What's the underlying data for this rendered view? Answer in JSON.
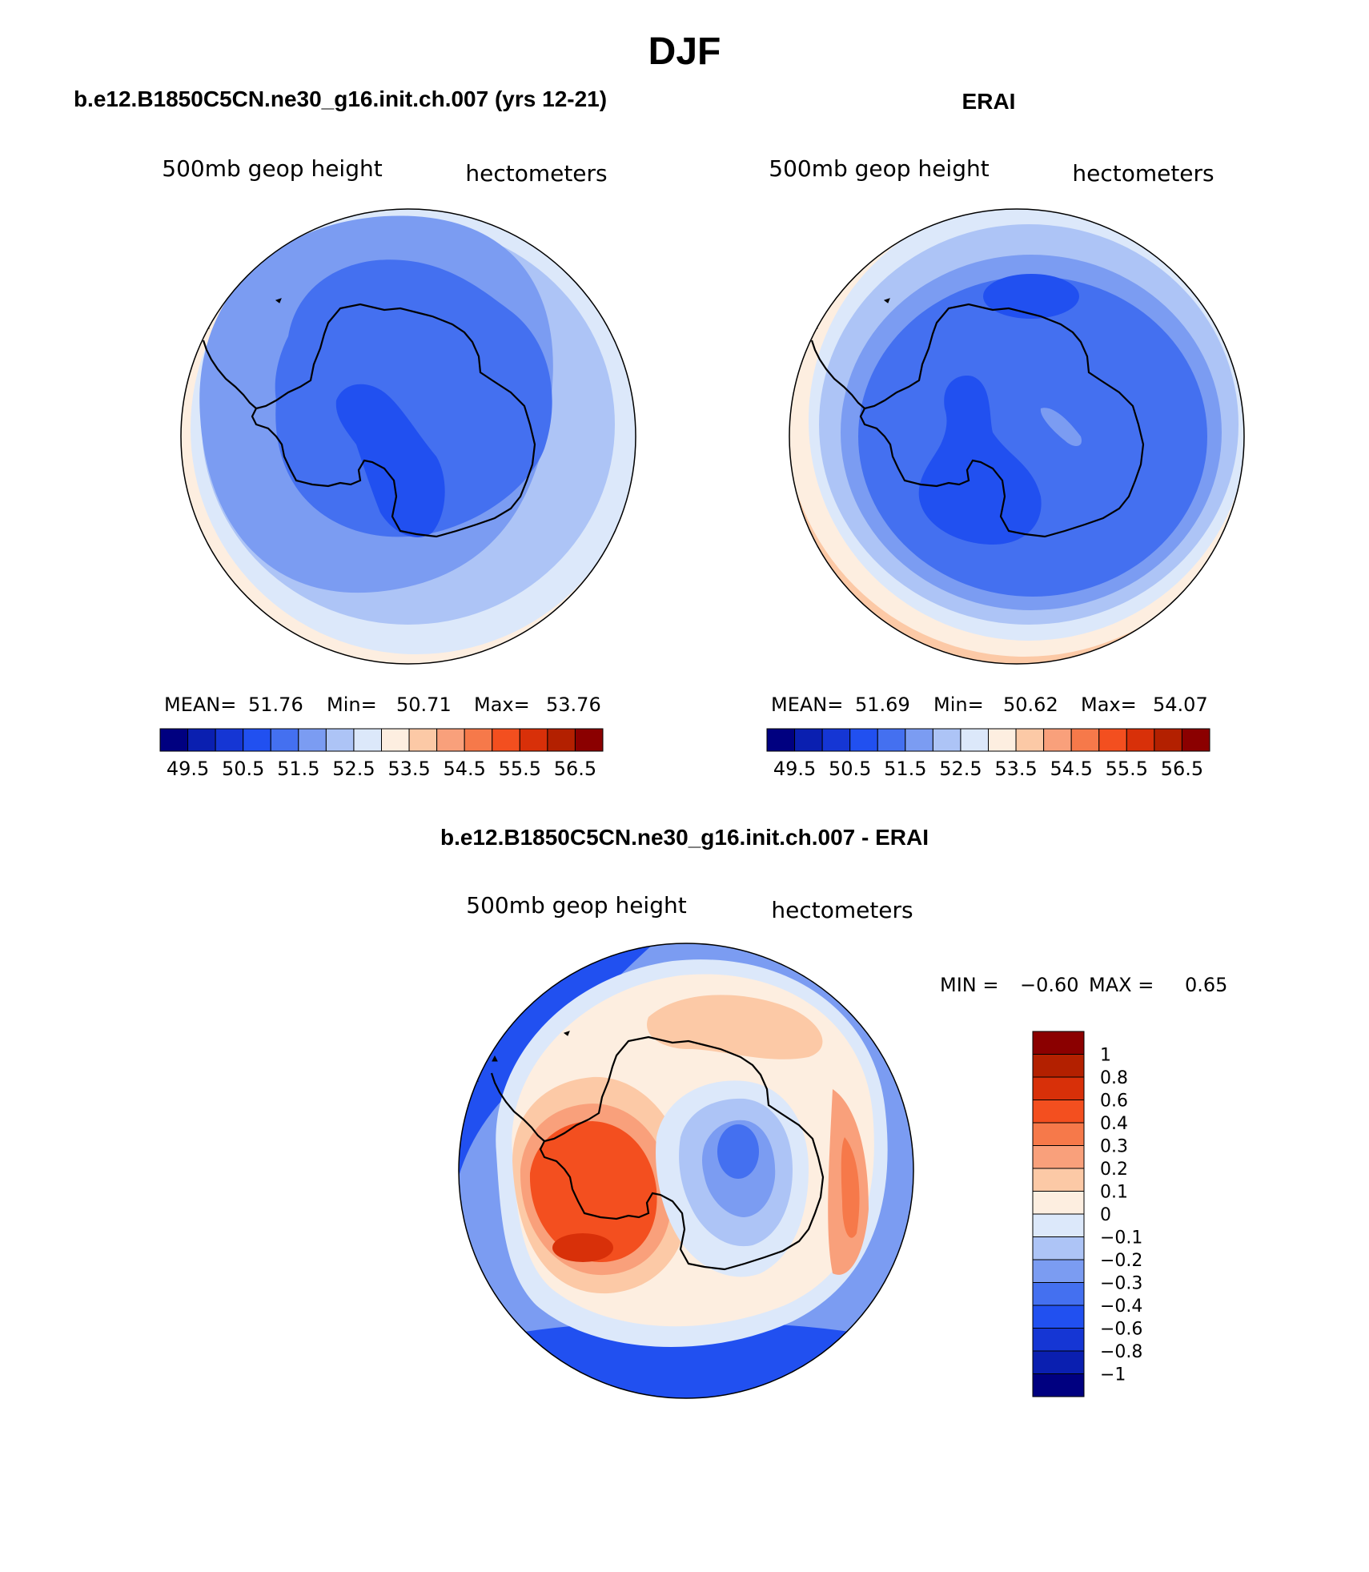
{
  "figure": {
    "title": "DJF"
  },
  "panels": [
    {
      "id": "model",
      "title": "b.e12.B1850C5CN.ne30_g16.init.ch.007 (yrs 12-21)",
      "left_label": "500mb geop height",
      "right_label": "hectometers",
      "stats": {
        "mean_label": "MEAN=",
        "mean": "51.76",
        "min_label": "Min=",
        "min": "50.71",
        "max_label": "Max=",
        "max": "53.76"
      }
    },
    {
      "id": "obs",
      "title": "ERAI",
      "left_label": "500mb geop height",
      "right_label": "hectometers",
      "stats": {
        "mean_label": "MEAN=",
        "mean": "51.69",
        "min_label": "Min=",
        "min": "50.62",
        "max_label": "Max=",
        "max": "54.07"
      }
    },
    {
      "id": "diff",
      "title": "b.e12.B1850C5CN.ne30_g16.init.ch.007 - ERAI",
      "left_label": "500mb geop height",
      "right_label": "hectometers",
      "stats": {
        "min_label": "MIN =",
        "min": "−0.60",
        "max_label": "MAX =",
        "max": "0.65"
      }
    }
  ],
  "colorbars": {
    "mean": {
      "tick_labels": [
        "49.5",
        "50.5",
        "51.5",
        "52.5",
        "53.5",
        "54.5",
        "55.5",
        "56.5"
      ],
      "colors": [
        "#000080",
        "#0a1fb0",
        "#1536d4",
        "#2150f0",
        "#4470f0",
        "#7b9cf2",
        "#adc4f6",
        "#dce8fa",
        "#fdeee0",
        "#fcc9a6",
        "#f9a07b",
        "#f6794a",
        "#f34f1f",
        "#d83009",
        "#b32000",
        "#8b0000"
      ]
    },
    "diff": {
      "tick_labels": [
        "1",
        "0.8",
        "0.6",
        "0.4",
        "0.3",
        "0.2",
        "0.1",
        "0",
        "−0.1",
        "−0.2",
        "−0.3",
        "−0.4",
        "−0.6",
        "−0.8",
        "−1"
      ],
      "colors": [
        "#8b0000",
        "#b32000",
        "#d83009",
        "#f34f1f",
        "#f6794a",
        "#f9a07b",
        "#fcc9a6",
        "#fdeee0",
        "#dce8fa",
        "#adc4f6",
        "#7b9cf2",
        "#4470f0",
        "#2150f0",
        "#1536d4",
        "#0a1fb0",
        "#000080"
      ]
    }
  },
  "chart_data": [
    {
      "type": "heatmap",
      "title": "b.e12.B1850C5CN.ne30_g16.init.ch.007 (yrs 12-21)",
      "variable": "500mb geop height",
      "units": "hectometers",
      "projection": "polar-stereographic-south",
      "colorbar_levels": [
        49.5,
        50.5,
        51.5,
        52.5,
        53.5,
        54.5,
        55.5,
        56.5
      ],
      "mean": 51.76,
      "min": 50.71,
      "max": 53.76
    },
    {
      "type": "heatmap",
      "title": "ERAI",
      "variable": "500mb geop height",
      "units": "hectometers",
      "projection": "polar-stereographic-south",
      "colorbar_levels": [
        49.5,
        50.5,
        51.5,
        52.5,
        53.5,
        54.5,
        55.5,
        56.5
      ],
      "mean": 51.69,
      "min": 50.62,
      "max": 54.07
    },
    {
      "type": "heatmap",
      "title": "b.e12.B1850C5CN.ne30_g16.init.ch.007 - ERAI",
      "variable": "500mb geop height",
      "units": "hectometers",
      "projection": "polar-stereographic-south",
      "colorbar_levels": [
        -1,
        -0.8,
        -0.6,
        -0.4,
        -0.3,
        -0.2,
        -0.1,
        0,
        0.1,
        0.2,
        0.3,
        0.4,
        0.6,
        0.8,
        1
      ],
      "min": -0.6,
      "max": 0.65
    }
  ]
}
